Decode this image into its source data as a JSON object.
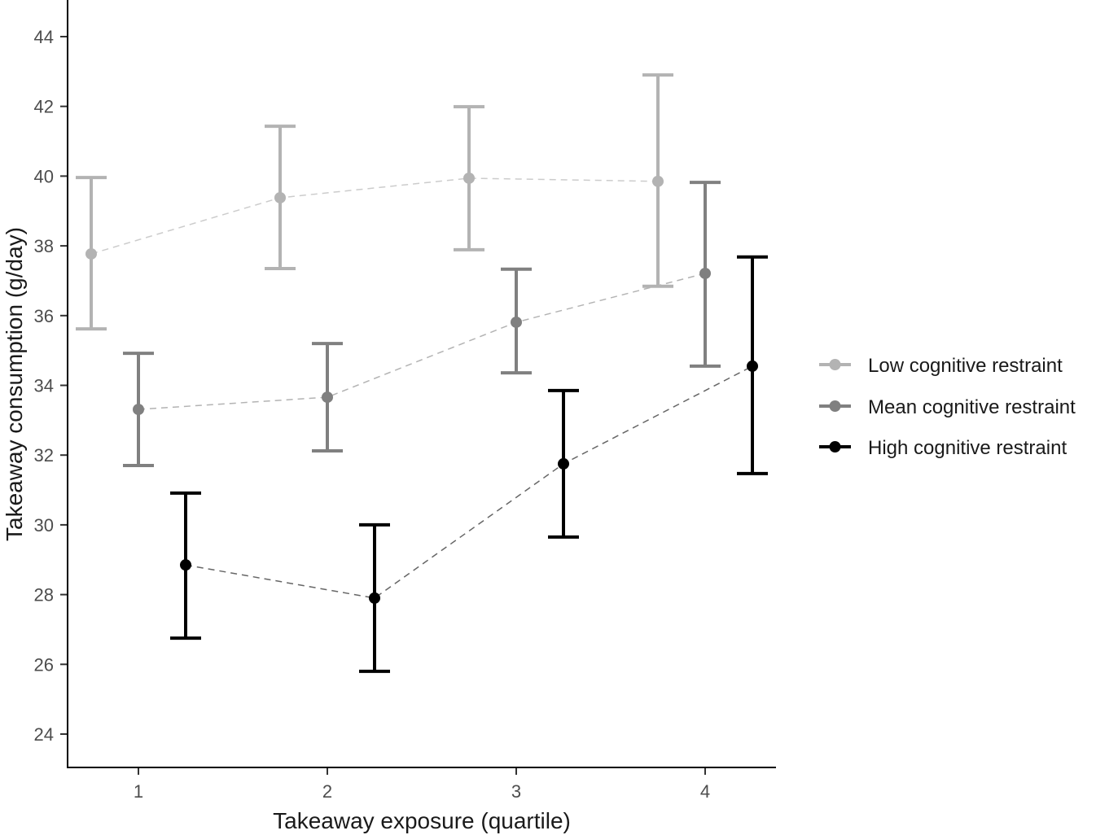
{
  "chart_data": {
    "type": "line",
    "subtype": "point-range with error bars, dodged",
    "title": "",
    "xlabel": "Takeaway exposure (quartile)",
    "ylabel": "Takeaway consumption (g/day)",
    "categories": [
      "1",
      "2",
      "3",
      "4"
    ],
    "x_ticks": [
      1,
      2,
      3,
      4
    ],
    "y_ticks": [
      24,
      26,
      28,
      30,
      32,
      34,
      36,
      38,
      40,
      42,
      44
    ],
    "ylim": [
      23,
      45
    ],
    "xlim": [
      0.62,
      4.38
    ],
    "grid": false,
    "legend_position": "right",
    "series": [
      {
        "name": "Low cognitive restraint",
        "color": "#b3b3b3",
        "line_color": "#cccccc",
        "dodge": -0.25,
        "values": [
          37.77,
          39.38,
          39.94,
          39.85
        ],
        "lower": [
          35.62,
          37.35,
          37.89,
          36.84
        ],
        "upper": [
          39.96,
          41.43,
          41.99,
          42.9
        ]
      },
      {
        "name": "Mean cognitive restraint",
        "color": "#808080",
        "line_color": "#b3b3b3",
        "dodge": 0.0,
        "values": [
          33.31,
          33.66,
          35.81,
          37.21
        ],
        "lower": [
          31.7,
          32.12,
          34.36,
          34.55
        ],
        "upper": [
          34.92,
          35.2,
          37.33,
          39.82
        ]
      },
      {
        "name": "High cognitive restraint",
        "color": "#000000",
        "line_color": "#666666",
        "dodge": 0.25,
        "values": [
          28.85,
          27.9,
          31.75,
          34.55
        ],
        "lower": [
          26.75,
          25.8,
          29.65,
          31.47
        ],
        "upper": [
          30.91,
          30.0,
          33.85,
          37.68
        ]
      }
    ]
  },
  "axes": {
    "x_title": "Takeaway exposure (quartile)",
    "y_title": "Takeaway consumption (g/day)"
  },
  "legend": {
    "items": [
      {
        "label": "Low cognitive restraint",
        "color": "#b3b3b3"
      },
      {
        "label": "Mean cognitive restraint",
        "color": "#808080"
      },
      {
        "label": "High cognitive restraint",
        "color": "#000000"
      }
    ]
  }
}
